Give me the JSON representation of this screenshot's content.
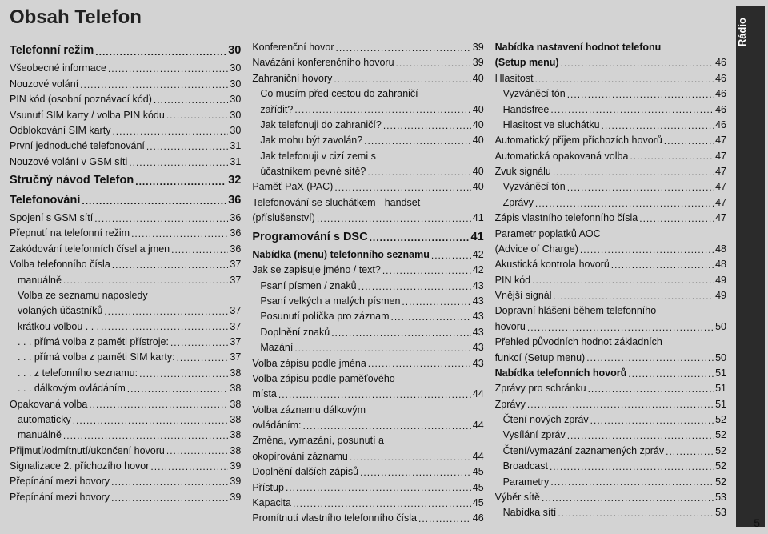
{
  "title": "Obsah Telefon",
  "sidebar_tab": "Rádio",
  "page_number": "5",
  "columns": [
    {
      "items": [
        {
          "type": "section",
          "label": "Telefonní režim",
          "page": "30"
        },
        {
          "type": "row",
          "label": "Všeobecné informace",
          "page": "30"
        },
        {
          "type": "row",
          "label": "Nouzové volání",
          "page": "30"
        },
        {
          "type": "row",
          "label": "PIN kód (osobní poznávací kód)",
          "page": "30"
        },
        {
          "type": "row",
          "label": "Vsunutí SIM karty / volba PIN kódu",
          "page": "30"
        },
        {
          "type": "row",
          "label": "Odblokování SIM karty",
          "page": "30"
        },
        {
          "type": "row",
          "label": "První jednoduché telefonování",
          "page": "31"
        },
        {
          "type": "row",
          "label": "Nouzové volání v GSM síti",
          "page": "31"
        },
        {
          "type": "section",
          "label": "Stručný návod  Telefon",
          "page": "32"
        },
        {
          "type": "section",
          "label": "Telefonování",
          "page": "36"
        },
        {
          "type": "row",
          "label": "Spojení s GSM sítí",
          "page": "36"
        },
        {
          "type": "row",
          "label": "Přepnutí na telefonní režim",
          "page": "36"
        },
        {
          "type": "row",
          "label": "Zakódování telefonních čísel a jmen",
          "page": "36"
        },
        {
          "type": "row",
          "label": "Volba telefonního čísla",
          "page": "37"
        },
        {
          "type": "row",
          "indent": 1,
          "label": "manuálně",
          "page": "37"
        },
        {
          "type": "text",
          "indent": 1,
          "label": "Volba ze seznamu naposledy"
        },
        {
          "type": "row",
          "indent": 1,
          "label": "volaných účastníků",
          "page": "37"
        },
        {
          "type": "row",
          "indent": 1,
          "label": "krátkou volbou . . .",
          "page": "37"
        },
        {
          "type": "row",
          "indent": 1,
          "label": ". . . přímá volba z paměti přístroje:",
          "page": "37"
        },
        {
          "type": "row",
          "indent": 1,
          "label": ". . . přímá volba z paměti SIM karty:",
          "page": "37"
        },
        {
          "type": "row",
          "indent": 1,
          "label": ". . . z telefonního seznamu:",
          "page": "38"
        },
        {
          "type": "row",
          "indent": 1,
          "label": ". . . dálkovým ovládáním",
          "page": "38"
        },
        {
          "type": "row",
          "label": "Opakovaná volba",
          "page": "38"
        },
        {
          "type": "row",
          "indent": 1,
          "label": "automaticky",
          "page": "38"
        },
        {
          "type": "row",
          "indent": 1,
          "label": "manuálně",
          "page": "38"
        },
        {
          "type": "row",
          "label": "Přijmutí/odmítnutí/ukončení hovoru",
          "page": "38"
        },
        {
          "type": "row",
          "label": "Signalizace 2. příchozího hovor",
          "page": "39"
        },
        {
          "type": "row",
          "label": "Přepínání mezi hovory",
          "page": "39"
        },
        {
          "type": "row",
          "label": "Přepínání mezi hovory",
          "page": "39"
        }
      ]
    },
    {
      "items": [
        {
          "type": "row",
          "label": "Konferenční hovor",
          "page": "39"
        },
        {
          "type": "row",
          "label": "Navázání konferenčního hovoru",
          "page": "39"
        },
        {
          "type": "row",
          "label": "Zahraniční hovory",
          "page": "40"
        },
        {
          "type": "text",
          "indent": 1,
          "label": "Co musím před cestou do zahraničí"
        },
        {
          "type": "row",
          "indent": 1,
          "label": "zařídit?",
          "page": "40"
        },
        {
          "type": "row",
          "indent": 1,
          "label": "Jak telefonuji do zahraničí?",
          "page": "40"
        },
        {
          "type": "row",
          "indent": 1,
          "label": "Jak mohu být zavolán?",
          "page": "40"
        },
        {
          "type": "text",
          "indent": 1,
          "label": "Jak telefonuji v cizí zemi s"
        },
        {
          "type": "row",
          "indent": 1,
          "label": "účastníkem pevné sítě?",
          "page": "40"
        },
        {
          "type": "row",
          "label": "Paměť PaX (PAC)",
          "page": "40"
        },
        {
          "type": "text",
          "label": "Telefonování se sluchátkem - handset"
        },
        {
          "type": "row",
          "label": "(příslušenství)",
          "page": "41"
        },
        {
          "type": "section",
          "label": "Programování s DSC",
          "page": "41"
        },
        {
          "type": "rowbold",
          "label": "Nabídka (menu) telefonního seznamu",
          "page": "42"
        },
        {
          "type": "row",
          "label": "Jak se zapisuje jméno / text?",
          "page": "42"
        },
        {
          "type": "row",
          "indent": 1,
          "label": "Psaní písmen / znaků",
          "page": "43"
        },
        {
          "type": "row",
          "indent": 1,
          "label": "Psaní velkých a malých písmen",
          "page": "43"
        },
        {
          "type": "row",
          "indent": 1,
          "label": "Posunutí políčka pro záznam",
          "page": "43"
        },
        {
          "type": "row",
          "indent": 1,
          "label": "Doplnění znaků",
          "page": "43"
        },
        {
          "type": "row",
          "indent": 1,
          "label": "Mazání",
          "page": "43"
        },
        {
          "type": "row",
          "label": "Volba zápisu podle jména",
          "page": "43"
        },
        {
          "type": "text",
          "label": "Volba zápisu podle paměťového"
        },
        {
          "type": "row",
          "label": "místa",
          "page": "44"
        },
        {
          "type": "text",
          "label": "Volba záznamu dálkovým"
        },
        {
          "type": "row",
          "label": "ovládáním:",
          "page": "44"
        },
        {
          "type": "text",
          "label": "Změna, vymazání, posunutí a"
        },
        {
          "type": "row",
          "label": "okopírování záznamu",
          "page": "44"
        },
        {
          "type": "row",
          "label": "Doplnění dalších zápisů",
          "page": "45"
        },
        {
          "type": "row",
          "label": "Přístup",
          "page": "45"
        },
        {
          "type": "row",
          "label": "Kapacita",
          "page": "45"
        },
        {
          "type": "row",
          "label": "Promítnutí vlastního telefonního čísla",
          "page": "46"
        }
      ]
    },
    {
      "items": [
        {
          "type": "textbold",
          "label": "Nabídka nastavení hodnot telefonu"
        },
        {
          "type": "rowbold",
          "label": "(Setup menu)",
          "page": "46"
        },
        {
          "type": "row",
          "label": "Hlasitost",
          "page": "46"
        },
        {
          "type": "row",
          "indent": 1,
          "label": "Vyzváněcí tón",
          "page": "46"
        },
        {
          "type": "row",
          "indent": 1,
          "label": "Handsfree",
          "page": "46"
        },
        {
          "type": "row",
          "indent": 1,
          "label": "Hlasitost ve sluchátku",
          "page": "46"
        },
        {
          "type": "row",
          "label": "Automatický příjem příchozích hovorů",
          "page": "47"
        },
        {
          "type": "row",
          "label": "Automatická opakovaná volba",
          "page": "47"
        },
        {
          "type": "row",
          "label": "Zvuk signálu",
          "page": "47"
        },
        {
          "type": "row",
          "indent": 1,
          "label": "Vyzváněcí tón",
          "page": "47"
        },
        {
          "type": "row",
          "indent": 1,
          "label": "Zprávy",
          "page": "47"
        },
        {
          "type": "row",
          "label": "Zápis vlastního telefonního čísla",
          "page": "47"
        },
        {
          "type": "text",
          "label": "Parametr poplatků AOC"
        },
        {
          "type": "row",
          "label": "(Advice of Charge)",
          "page": "48"
        },
        {
          "type": "row",
          "label": "Akustická kontrola hovorů",
          "page": "48"
        },
        {
          "type": "row",
          "label": "PIN kód",
          "page": "49"
        },
        {
          "type": "row",
          "label": "Vnější signál",
          "page": "49"
        },
        {
          "type": "text",
          "label": "Dopravní hlášení během telefonního"
        },
        {
          "type": "row",
          "label": "hovoru",
          "page": "50"
        },
        {
          "type": "text",
          "label": "Přehled původních hodnot základních"
        },
        {
          "type": "row",
          "label": "funkcí (Setup menu)",
          "page": "50"
        },
        {
          "type": "rowbold",
          "label": "Nabídka telefonních hovorů",
          "page": "51"
        },
        {
          "type": "row",
          "label": "Zprávy pro schránku",
          "page": "51"
        },
        {
          "type": "row",
          "label": "Zprávy",
          "page": "51"
        },
        {
          "type": "row",
          "indent": 1,
          "label": "Čtení nových zpráv",
          "page": "52"
        },
        {
          "type": "row",
          "indent": 1,
          "label": "Vysílání zpráv",
          "page": "52"
        },
        {
          "type": "row",
          "indent": 1,
          "label": "Čtení/vymazání zaznamených zpráv",
          "page": "52"
        },
        {
          "type": "row",
          "indent": 1,
          "label": "Broadcast",
          "page": "52"
        },
        {
          "type": "row",
          "indent": 1,
          "label": "Parametry",
          "page": "52"
        },
        {
          "type": "row",
          "label": "Výběr sítě",
          "page": "53"
        },
        {
          "type": "row",
          "indent": 1,
          "label": "Nabídka sítí",
          "page": "53"
        }
      ]
    }
  ]
}
